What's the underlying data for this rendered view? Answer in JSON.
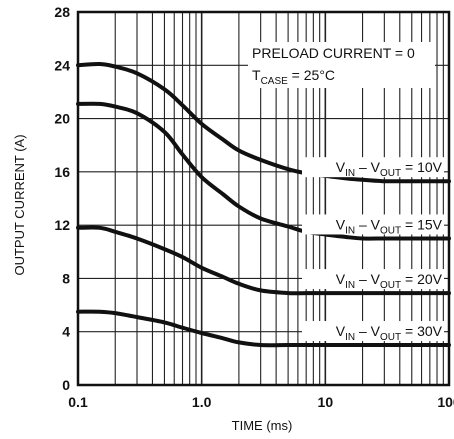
{
  "chart_data": {
    "type": "line",
    "xlabel": "TIME (ms)",
    "ylabel": "OUTPUT CURRENT (A)",
    "xscale": "log",
    "xlim": [
      0.1,
      100
    ],
    "ylim": [
      0,
      28
    ],
    "grid": true,
    "x_tick_labels": [
      "0.1",
      "1.0",
      "10",
      "100"
    ],
    "y_tick_labels": [
      "0",
      "4",
      "8",
      "12",
      "16",
      "20",
      "24",
      "28"
    ],
    "annotation": {
      "line1": "PRELOAD CURRENT = 0",
      "line2_prefix": "T",
      "line2_sub": "CASE",
      "line2_suffix": " = 25°C"
    },
    "series": [
      {
        "label_main": "V",
        "label_sub1": "IN",
        "label_mid": " – V",
        "label_sub2": "OUT",
        "label_end": " = 10V",
        "x": [
          0.1,
          0.15,
          0.2,
          0.3,
          0.5,
          0.7,
          1.0,
          1.5,
          2,
          3,
          5,
          7,
          10,
          15,
          20,
          30,
          50,
          100
        ],
        "y": [
          24,
          24.1,
          23.9,
          23.4,
          22.2,
          21.0,
          19.6,
          18.4,
          17.6,
          16.9,
          16.2,
          15.9,
          15.7,
          15.5,
          15.4,
          15.3,
          15.3,
          15.3
        ]
      },
      {
        "label_main": "V",
        "label_sub1": "IN",
        "label_mid": " – V",
        "label_sub2": "OUT",
        "label_end": " = 15V",
        "x": [
          0.1,
          0.15,
          0.2,
          0.3,
          0.5,
          0.7,
          1.0,
          1.5,
          2,
          3,
          5,
          7,
          10,
          15,
          20,
          30,
          50,
          100
        ],
        "y": [
          21.1,
          21.1,
          20.9,
          20.4,
          19.0,
          17.3,
          15.6,
          14.3,
          13.4,
          12.5,
          11.9,
          11.5,
          11.3,
          11.1,
          11.0,
          11.0,
          11.0,
          11.0
        ]
      },
      {
        "label_main": "V",
        "label_sub1": "IN",
        "label_mid": " – V",
        "label_sub2": "OUT",
        "label_end": " = 20V",
        "x": [
          0.1,
          0.15,
          0.2,
          0.3,
          0.5,
          0.7,
          1.0,
          1.5,
          2,
          3,
          5,
          7,
          10,
          15,
          20,
          30,
          50,
          100
        ],
        "y": [
          11.8,
          11.8,
          11.5,
          11.0,
          10.2,
          9.6,
          8.8,
          8.1,
          7.6,
          7.1,
          6.9,
          6.9,
          6.9,
          6.9,
          6.9,
          6.9,
          6.9,
          6.9
        ]
      },
      {
        "label_main": "V",
        "label_sub1": "IN",
        "label_mid": " – V",
        "label_sub2": "OUT",
        "label_end": " = 30V",
        "x": [
          0.1,
          0.15,
          0.2,
          0.3,
          0.5,
          0.7,
          1.0,
          1.5,
          2,
          3,
          5,
          7,
          10,
          15,
          20,
          30,
          50,
          100
        ],
        "y": [
          5.5,
          5.5,
          5.4,
          5.1,
          4.7,
          4.3,
          3.9,
          3.5,
          3.2,
          3.0,
          3.0,
          3.0,
          3.0,
          3.0,
          3.0,
          3.0,
          3.0,
          3.0
        ]
      }
    ]
  }
}
